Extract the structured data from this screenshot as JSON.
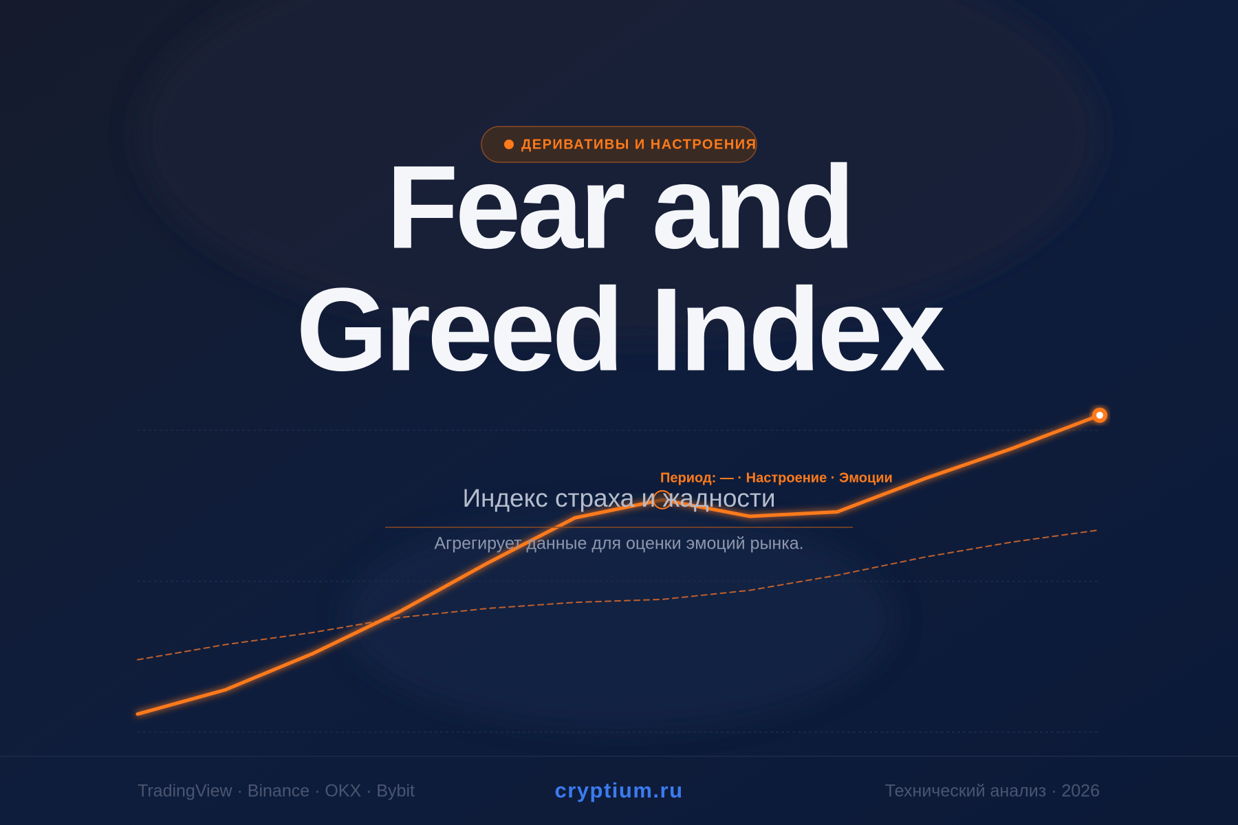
{
  "header": {
    "badge": "ДЕРИВАТИВЫ И НАСТРОЕНИЯ",
    "title_lines": [
      "Fear and",
      "Greed Index"
    ],
    "subtitle": "Индекс страха и жадности",
    "description": "Агрегирует данные для оценки эмоций рынка."
  },
  "chart_data": {
    "type": "line",
    "annotation": "Период: — · Настроение · Эмоции",
    "categories": [
      null,
      null,
      null,
      null,
      null,
      null,
      null,
      null,
      null,
      null,
      null,
      null
    ],
    "series": [
      {
        "color": "#ff7a1a",
        "values": [
          6,
          14,
          26,
          40,
          56,
          71,
          77,
          71.5,
          73,
          84,
          94,
          105
        ]
      },
      {
        "color": "#c2602a",
        "dashed": true,
        "values": [
          24,
          29,
          33,
          38,
          41,
          43,
          44,
          47,
          52,
          58,
          63,
          67
        ]
      }
    ],
    "ylim": [
      0,
      110
    ],
    "yticks": [
      0,
      50,
      100
    ],
    "grid": true
  },
  "footer": {
    "sources": "TradingView · Binance · OKX · Bybit",
    "site": "cryptium.ru",
    "topic": "Технический анализ · 2026"
  }
}
